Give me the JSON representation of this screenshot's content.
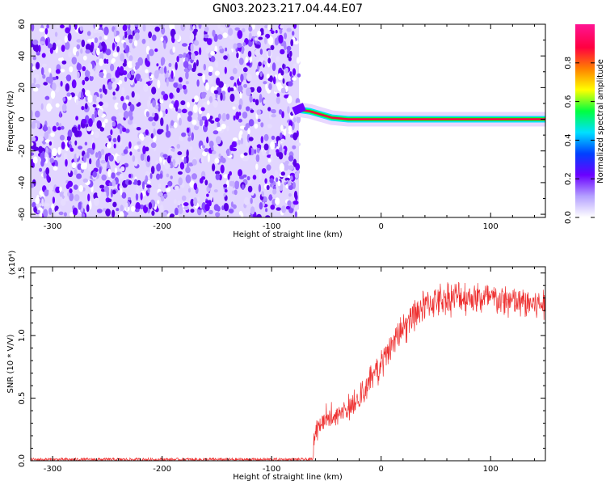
{
  "title": "GN03.2023.217.04.44.E07",
  "chart_data": [
    {
      "type": "heatmap",
      "xlabel": "Height of straight line (km)",
      "ylabel": "Frequency (Hz)",
      "xlim": [
        -320,
        150
      ],
      "ylim": [
        -62,
        60
      ],
      "x_ticks": [
        -300,
        -200,
        -100,
        0,
        100
      ],
      "y_ticks": [
        -60,
        -40,
        -20,
        0,
        20,
        40,
        60
      ],
      "noise_region_x": [
        -320,
        -75
      ],
      "signal_line": {
        "x_start": -75,
        "x_end": 150,
        "frequency": 0,
        "points": [
          [
            -75,
            6
          ],
          [
            -65,
            5
          ],
          [
            -55,
            3
          ],
          [
            -45,
            1
          ],
          [
            -30,
            0
          ],
          [
            -15,
            0
          ],
          [
            0,
            0
          ],
          [
            10,
            0
          ],
          [
            20,
            0
          ],
          [
            150,
            0
          ]
        ]
      },
      "colorbar": {
        "label": "Normalized spectral amplitude",
        "range": [
          0,
          1
        ],
        "ticks": [
          0.0,
          0.2,
          0.4,
          0.6,
          0.8
        ],
        "tick_labels": [
          "0.0",
          "0.2",
          "0.4",
          "0.6",
          "0.8"
        ],
        "colors": [
          "#ffffff",
          "#b4a0ff",
          "#6a00ff",
          "#0040ff",
          "#00e0ff",
          "#00ff40",
          "#ffff00",
          "#ff8000",
          "#ff0040",
          "#ff1493"
        ]
      }
    },
    {
      "type": "line",
      "xlabel": "Height of straight line (km)",
      "ylabel": "SNR (10 * V/V)",
      "scale_label": "(x10⁴)",
      "xlim": [
        -320,
        150
      ],
      "ylim": [
        0,
        1.55
      ],
      "x_ticks": [
        -300,
        -200,
        -100,
        0,
        100
      ],
      "y_ticks": [
        0.0,
        0.5,
        1.0,
        1.5
      ],
      "y_tick_labels": [
        "0.0",
        "0.5",
        "1.0",
        "1.5"
      ],
      "color": "#ee3333",
      "trend": {
        "x": [
          -320,
          -62,
          -61,
          -55,
          -40,
          -25,
          -15,
          -5,
          5,
          15,
          25,
          35,
          50,
          70,
          90,
          110,
          130,
          150
        ],
        "y": [
          0.01,
          0.01,
          0.25,
          0.3,
          0.37,
          0.45,
          0.55,
          0.7,
          0.85,
          1.0,
          1.12,
          1.22,
          1.28,
          1.31,
          1.3,
          1.28,
          1.26,
          1.25
        ]
      }
    }
  ]
}
